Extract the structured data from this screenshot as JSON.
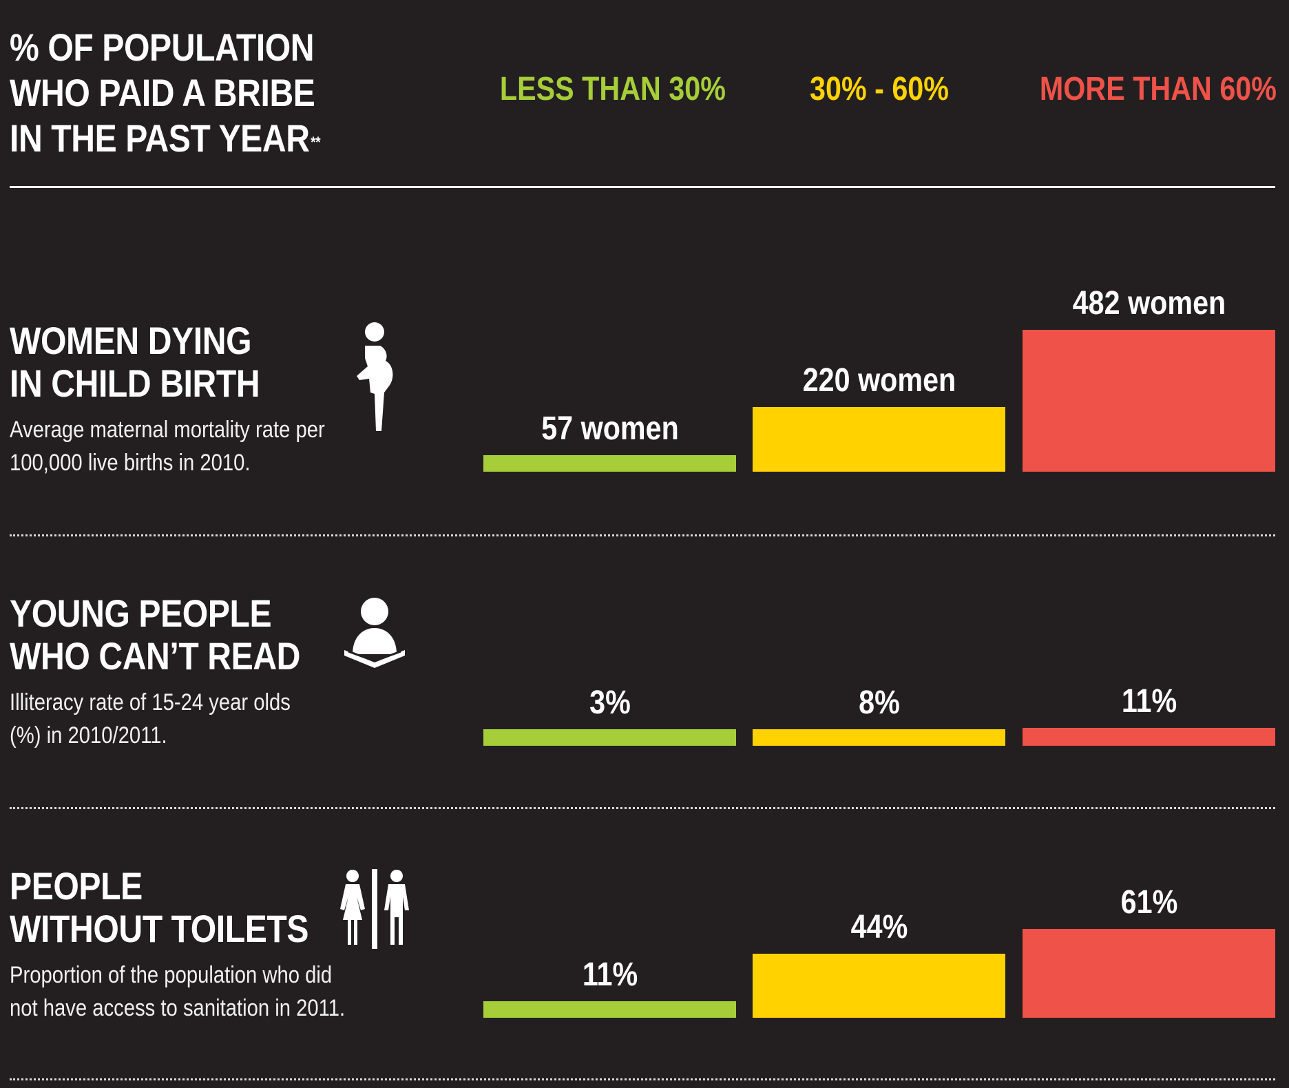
{
  "header": {
    "title_lines": [
      "% OF POPULATION",
      "WHO PAID A BRIBE",
      "IN THE PAST YEAR"
    ],
    "title_footnote_mark": "**"
  },
  "legend": [
    {
      "label": "LESS THAN 30%",
      "color": "#a6ce39"
    },
    {
      "label": "30% - 60%",
      "color": "#ffd200"
    },
    {
      "label": "MORE THAN 60%",
      "color": "#ef5249"
    }
  ],
  "rows": [
    {
      "title_lines": [
        "WOMEN DYING",
        "IN CHILD BIRTH"
      ],
      "subtitle_lines": [
        "Average maternal mortality rate per",
        "100,000 live births in 2010."
      ],
      "icon": "pregnant-woman-icon"
    },
    {
      "title_lines": [
        "YOUNG PEOPLE",
        "WHO CAN’T READ"
      ],
      "subtitle_lines": [
        "Illiteracy rate of 15-24 year olds",
        "(%) in 2010/2011."
      ],
      "icon": "person-reading-icon"
    },
    {
      "title_lines": [
        "PEOPLE",
        "WITHOUT TOILETS"
      ],
      "subtitle_lines": [
        "Proportion of the population who did",
        "not have access to sanitation in 2011."
      ],
      "icon": "restroom-icon"
    }
  ],
  "chart_data": [
    {
      "type": "bar",
      "title": "WOMEN DYING IN CHILD BIRTH",
      "categories": [
        "LESS THAN 30%",
        "30% - 60%",
        "MORE THAN 60%"
      ],
      "values": [
        57,
        220,
        482
      ],
      "data_labels": [
        "57 women",
        "220 women",
        "482 women"
      ],
      "colors": [
        "#a6ce39",
        "#ffd200",
        "#ef5249"
      ],
      "ylim": [
        0,
        482
      ]
    },
    {
      "type": "bar",
      "title": "YOUNG PEOPLE WHO CAN’T READ",
      "categories": [
        "LESS THAN 30%",
        "30% - 60%",
        "MORE THAN 60%"
      ],
      "values": [
        3,
        8,
        11
      ],
      "data_labels": [
        "3%",
        "8%",
        "11%"
      ],
      "colors": [
        "#a6ce39",
        "#ffd200",
        "#ef5249"
      ],
      "ylim": [
        0,
        100
      ]
    },
    {
      "type": "bar",
      "title": "PEOPLE WITHOUT TOILETS",
      "categories": [
        "LESS THAN 30%",
        "30% - 60%",
        "MORE THAN 60%"
      ],
      "values": [
        11,
        44,
        61
      ],
      "data_labels": [
        "11%",
        "44%",
        "61%"
      ],
      "colors": [
        "#a6ce39",
        "#ffd200",
        "#ef5249"
      ],
      "ylim": [
        0,
        100
      ]
    }
  ]
}
